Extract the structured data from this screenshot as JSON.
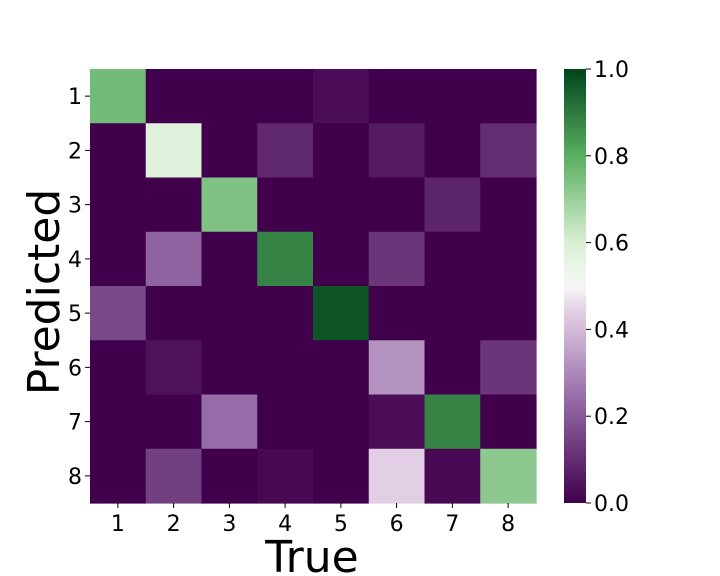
{
  "chart_data": {
    "type": "heatmap",
    "title": "",
    "xlabel": "True",
    "ylabel": "Predicted",
    "x_categories": [
      "1",
      "2",
      "3",
      "4",
      "5",
      "6",
      "7",
      "8"
    ],
    "y_categories": [
      "1",
      "2",
      "3",
      "4",
      "5",
      "6",
      "7",
      "8"
    ],
    "matrix": [
      [
        0.76,
        0.0,
        0.0,
        0.0,
        0.03,
        0.0,
        0.0,
        0.0
      ],
      [
        0.0,
        0.58,
        0.0,
        0.09,
        0.0,
        0.06,
        0.0,
        0.1
      ],
      [
        0.0,
        0.0,
        0.74,
        0.0,
        0.0,
        0.0,
        0.08,
        0.0
      ],
      [
        0.0,
        0.22,
        0.0,
        0.88,
        0.0,
        0.12,
        0.0,
        0.0
      ],
      [
        0.16,
        0.0,
        0.0,
        0.0,
        0.97,
        0.0,
        0.0,
        0.0
      ],
      [
        0.0,
        0.04,
        0.0,
        0.0,
        0.0,
        0.32,
        0.0,
        0.12
      ],
      [
        0.0,
        0.0,
        0.24,
        0.0,
        0.0,
        0.03,
        0.88,
        0.0
      ],
      [
        0.0,
        0.14,
        0.0,
        0.02,
        0.0,
        0.44,
        0.02,
        0.72
      ]
    ],
    "colorbar": {
      "min": 0.0,
      "max": 1.0,
      "ticks": [
        "0.0",
        "0.2",
        "0.4",
        "0.6",
        "0.8",
        "1.0"
      ],
      "colormap": "PRGn",
      "colors": [
        "#40004b",
        "#9970ab",
        "#e7d4e8",
        "#f7f7f7",
        "#d9f0d3",
        "#5aae61",
        "#00441b"
      ]
    }
  }
}
